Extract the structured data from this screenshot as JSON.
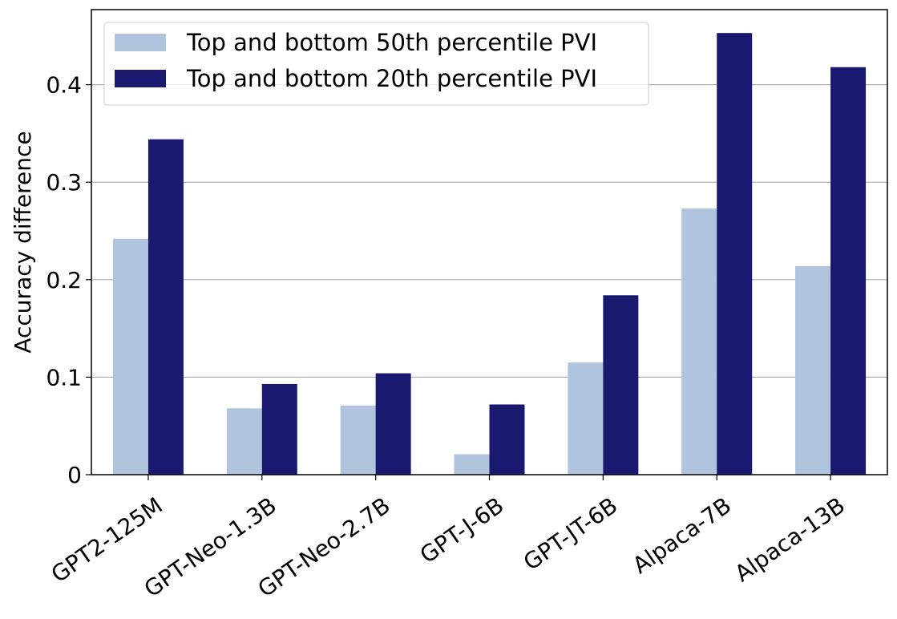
{
  "chart_data": {
    "type": "bar",
    "categories": [
      "GPT2-125M",
      "GPT-Neo-1.3B",
      "GPT-Neo-2.7B",
      "GPT-J-6B",
      "GPT-JT-6B",
      "Alpaca-7B",
      "Alpaca-13B"
    ],
    "series": [
      {
        "name": "Top and bottom 50th percentile PVI",
        "color": "#b0c4de",
        "values": [
          0.242,
          0.068,
          0.071,
          0.021,
          0.115,
          0.273,
          0.214
        ]
      },
      {
        "name": "Top and bottom 20th percentile PVI",
        "color": "#191970",
        "values": [
          0.344,
          0.093,
          0.104,
          0.072,
          0.184,
          0.453,
          0.418
        ]
      }
    ],
    "title": "",
    "xlabel": "",
    "ylabel": "Accuracy difference",
    "ylim": [
      0,
      0.477
    ],
    "yticks": [
      0,
      0.1,
      0.2,
      0.3,
      0.4
    ],
    "ytick_labels": [
      "0",
      "0.1",
      "0.2",
      "0.3",
      "0.4"
    ],
    "grid": "horizontal",
    "legend_position": "upper-left",
    "xtick_rotation": 35
  }
}
